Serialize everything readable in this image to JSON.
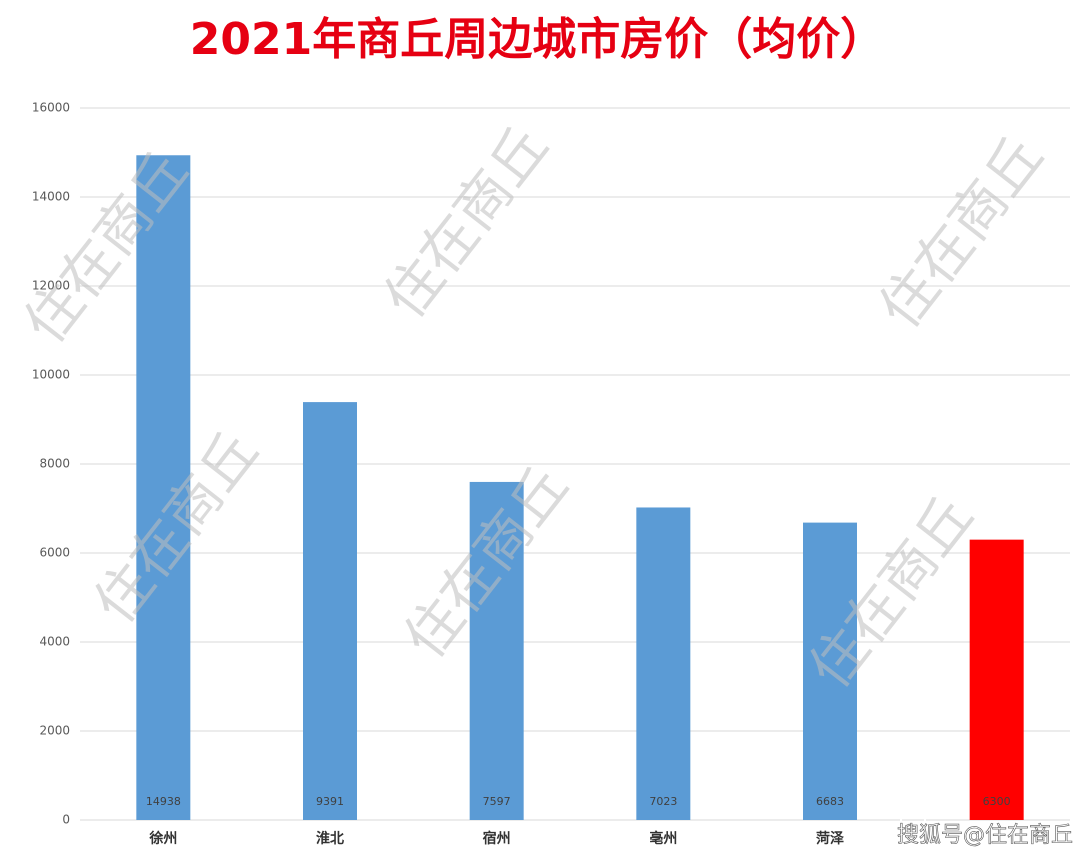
{
  "chart_data": {
    "type": "bar",
    "title": "2021年商丘周边城市房价（均价）",
    "categories": [
      "徐州",
      "淮北",
      "宿州",
      "亳州",
      "菏泽",
      null
    ],
    "values": [
      14938,
      9391,
      7597,
      7023,
      6683,
      6300
    ],
    "colors": [
      "#5b9bd5",
      "#5b9bd5",
      "#5b9bd5",
      "#5b9bd5",
      "#5b9bd5",
      "#ff0000"
    ],
    "ylim": [
      0,
      16000
    ],
    "yticks": [
      0,
      2000,
      4000,
      6000,
      8000,
      10000,
      12000,
      14000,
      16000
    ],
    "grid": true
  },
  "watermark": "住在商丘",
  "source_mark": "搜狐号@住在商丘"
}
